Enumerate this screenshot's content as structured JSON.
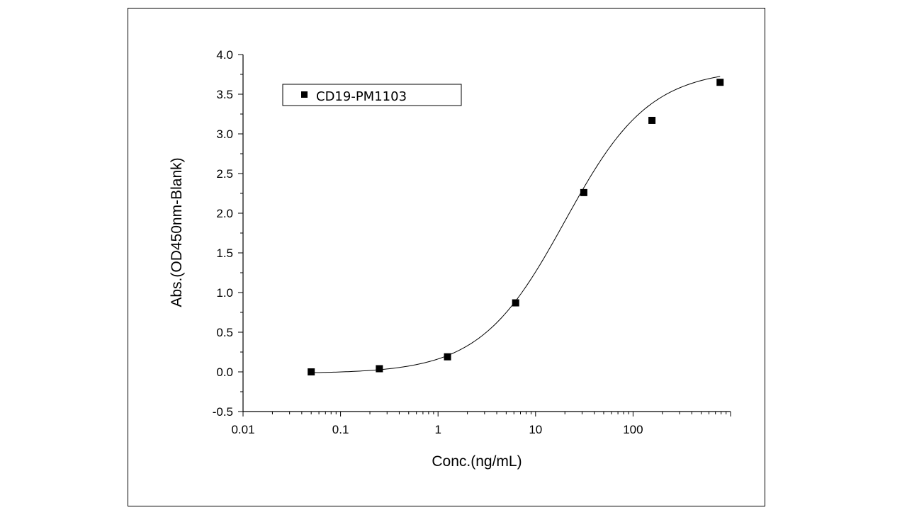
{
  "chart_data": {
    "type": "scatter",
    "title": "",
    "xlabel": "Conc.(ng/mL)",
    "ylabel": "Abs.(OD450nm-Blank)",
    "x_scale": "log",
    "xlim": [
      0.01,
      1000
    ],
    "ylim": [
      -0.5,
      4.0
    ],
    "x_ticks": [
      "0.01",
      "0.1",
      "1",
      "10",
      "100"
    ],
    "y_ticks": [
      "-0.5",
      "0.0",
      "0.5",
      "1.0",
      "1.5",
      "2.0",
      "2.5",
      "3.0",
      "3.5",
      "4.0"
    ],
    "legend_position": "top-left",
    "series": [
      {
        "name": "CD19-PM1103",
        "marker": "square",
        "color": "#000000",
        "x": [
          0.05,
          0.25,
          1.25,
          6.25,
          31.25,
          156.25,
          781.25
        ],
        "y": [
          0.0,
          0.04,
          0.19,
          0.87,
          2.26,
          3.17,
          3.65
        ]
      }
    ],
    "fit_curve": {
      "model": "4PL",
      "color": "#000000",
      "bottom": -0.02,
      "top": 3.82,
      "ec50": 20.0,
      "hill": 1.0
    }
  }
}
